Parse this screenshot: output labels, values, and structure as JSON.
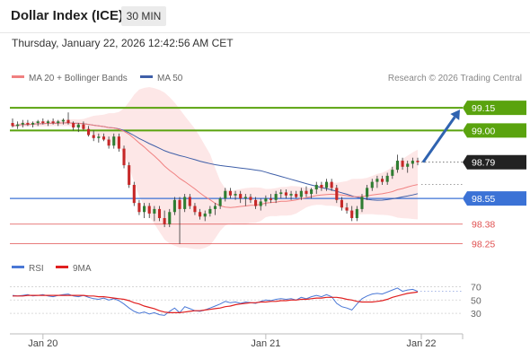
{
  "header": {
    "title": "Dollar Index (ICE)",
    "timeframe": "30 MIN"
  },
  "datetime": "Thursday, January 22, 2026 12:42:56 AM CET",
  "legend": {
    "ma20_label": "MA 20 + Bollinger Bands",
    "ma50_label": "MA 50",
    "credit": "Research © 2026 Trading Central",
    "rsi_label": "RSI",
    "ma9_label": "9MA"
  },
  "colors": {
    "up": "#2e7d32",
    "down": "#c62828",
    "ma20": "#f08080",
    "ma50": "#3f5fa8",
    "bollinger": "#fde3e3",
    "resistance": "#5aa30e",
    "pivot": "#3b72d6",
    "support": "#e05050",
    "price_box": "#222222",
    "arrow": "#2f63b0",
    "rsi": "#4a78d6",
    "rsi_ma": "#e02020"
  },
  "chart_data": [
    {
      "type": "candlestick",
      "symbol": "Dollar Index (ICE)",
      "interval": "30 MIN",
      "x_ticks": [
        "Jan 20",
        "Jan 21",
        "Jan 22"
      ],
      "ylim": [
        98.2,
        99.27
      ],
      "last_price": 98.79,
      "levels": [
        {
          "value": 99.15,
          "label": "99.15",
          "kind": "resistance"
        },
        {
          "value": 99.0,
          "label": "99.00",
          "kind": "resistance"
        },
        {
          "value": 98.55,
          "label": "98.55",
          "kind": "pivot"
        },
        {
          "value": 98.38,
          "label": "98.38",
          "kind": "support"
        },
        {
          "value": 98.25,
          "label": "98.25",
          "kind": "support"
        }
      ],
      "forecast": {
        "from": 98.79,
        "to": 99.15
      },
      "candles": [
        [
          99.05,
          99.08,
          99.02,
          99.03
        ],
        [
          99.03,
          99.06,
          99.01,
          99.04
        ],
        [
          99.04,
          99.07,
          99.02,
          99.05
        ],
        [
          99.05,
          99.07,
          99.03,
          99.04
        ],
        [
          99.04,
          99.06,
          99.02,
          99.05
        ],
        [
          99.05,
          99.07,
          99.03,
          99.06
        ],
        [
          99.06,
          99.08,
          99.04,
          99.05
        ],
        [
          99.05,
          99.07,
          99.03,
          99.06
        ],
        [
          99.06,
          99.08,
          99.04,
          99.05
        ],
        [
          99.05,
          99.07,
          99.03,
          99.06
        ],
        [
          99.06,
          99.08,
          99.04,
          99.07
        ],
        [
          99.07,
          99.12,
          99.04,
          99.05
        ],
        [
          99.05,
          99.06,
          99.0,
          99.02
        ],
        [
          99.02,
          99.05,
          98.99,
          99.04
        ],
        [
          99.04,
          99.06,
          99.0,
          99.01
        ],
        [
          99.01,
          99.03,
          98.96,
          98.97
        ],
        [
          98.97,
          99.0,
          98.93,
          98.95
        ],
        [
          98.95,
          98.98,
          98.92,
          98.96
        ],
        [
          98.96,
          98.98,
          98.93,
          98.94
        ],
        [
          98.94,
          98.96,
          98.88,
          98.9
        ],
        [
          98.9,
          98.98,
          98.88,
          98.96
        ],
        [
          98.96,
          98.98,
          98.86,
          98.88
        ],
        [
          98.88,
          98.9,
          98.75,
          98.77
        ],
        [
          98.77,
          98.79,
          98.62,
          98.64
        ],
        [
          98.64,
          98.66,
          98.5,
          98.52
        ],
        [
          98.52,
          98.54,
          98.44,
          98.46
        ],
        [
          98.46,
          98.52,
          98.42,
          98.5
        ],
        [
          98.5,
          98.52,
          98.42,
          98.45
        ],
        [
          98.45,
          98.5,
          98.4,
          98.48
        ],
        [
          98.48,
          98.5,
          98.4,
          98.42
        ],
        [
          98.42,
          98.47,
          98.36,
          98.38
        ],
        [
          98.38,
          98.48,
          98.36,
          98.46
        ],
        [
          98.46,
          98.56,
          98.44,
          98.54
        ],
        [
          98.54,
          98.56,
          98.25,
          98.48
        ],
        [
          98.48,
          98.58,
          98.46,
          98.56
        ],
        [
          98.56,
          98.58,
          98.48,
          98.5
        ],
        [
          98.5,
          98.52,
          98.44,
          98.46
        ],
        [
          98.46,
          98.48,
          98.41,
          98.43
        ],
        [
          98.43,
          98.47,
          98.4,
          98.45
        ],
        [
          98.45,
          98.5,
          98.43,
          98.48
        ],
        [
          98.48,
          98.52,
          98.44,
          98.5
        ],
        [
          98.5,
          98.56,
          98.48,
          98.55
        ],
        [
          98.55,
          98.62,
          98.53,
          98.6
        ],
        [
          98.6,
          98.62,
          98.55,
          98.57
        ],
        [
          98.57,
          98.6,
          98.54,
          98.58
        ],
        [
          98.58,
          98.6,
          98.52,
          98.55
        ],
        [
          98.55,
          98.58,
          98.5,
          98.56
        ],
        [
          98.56,
          98.58,
          98.52,
          98.54
        ],
        [
          98.54,
          98.56,
          98.48,
          98.5
        ],
        [
          98.5,
          98.55,
          98.47,
          98.53
        ],
        [
          98.53,
          98.57,
          98.5,
          98.55
        ],
        [
          98.55,
          98.58,
          98.52,
          98.54
        ],
        [
          98.54,
          98.6,
          98.52,
          98.58
        ],
        [
          98.58,
          98.61,
          98.55,
          98.59
        ],
        [
          98.59,
          98.61,
          98.55,
          98.57
        ],
        [
          98.57,
          98.6,
          98.54,
          98.58
        ],
        [
          98.58,
          98.6,
          98.55,
          98.56
        ],
        [
          98.56,
          98.62,
          98.54,
          98.6
        ],
        [
          98.6,
          98.63,
          98.56,
          98.58
        ],
        [
          98.58,
          98.62,
          98.55,
          98.61
        ],
        [
          98.61,
          98.66,
          98.58,
          98.64
        ],
        [
          98.64,
          98.66,
          98.6,
          98.62
        ],
        [
          98.62,
          98.68,
          98.6,
          98.66
        ],
        [
          98.66,
          98.68,
          98.6,
          98.62
        ],
        [
          98.62,
          98.64,
          98.52,
          98.54
        ],
        [
          98.54,
          98.56,
          98.47,
          98.49
        ],
        [
          98.49,
          98.52,
          98.45,
          98.47
        ],
        [
          98.47,
          98.5,
          98.4,
          98.42
        ],
        [
          98.42,
          98.5,
          98.4,
          98.48
        ],
        [
          98.48,
          98.58,
          98.46,
          98.56
        ],
        [
          98.56,
          98.64,
          98.54,
          98.62
        ],
        [
          98.62,
          98.68,
          98.6,
          98.66
        ],
        [
          98.66,
          98.7,
          98.62,
          98.68
        ],
        [
          98.68,
          98.7,
          98.64,
          98.66
        ],
        [
          98.66,
          98.72,
          98.64,
          98.7
        ],
        [
          98.7,
          98.76,
          98.68,
          98.74
        ],
        [
          98.74,
          98.84,
          98.72,
          98.8
        ],
        [
          98.8,
          98.82,
          98.74,
          98.76
        ],
        [
          98.76,
          98.8,
          98.72,
          98.78
        ],
        [
          98.78,
          98.82,
          98.75,
          98.8
        ],
        [
          98.8,
          98.82,
          98.77,
          98.79
        ]
      ]
    },
    {
      "type": "line",
      "name": "RSI",
      "y_ticks": [
        70,
        50,
        30
      ],
      "ylim": [
        10,
        80
      ],
      "rsi": [
        57,
        56,
        57,
        58,
        56,
        57,
        58,
        56,
        55,
        57,
        58,
        59,
        56,
        55,
        57,
        54,
        52,
        51,
        53,
        50,
        52,
        49,
        44,
        38,
        33,
        30,
        32,
        29,
        31,
        28,
        27,
        33,
        38,
        31,
        40,
        37,
        34,
        33,
        35,
        38,
        41,
        44,
        48,
        46,
        47,
        45,
        47,
        46,
        45,
        48,
        50,
        49,
        51,
        52,
        51,
        52,
        50,
        54,
        52,
        55,
        57,
        55,
        58,
        55,
        45,
        40,
        38,
        35,
        44,
        52,
        56,
        59,
        60,
        59,
        62,
        65,
        68,
        63,
        65,
        66,
        63
      ],
      "ma9": [
        56,
        56,
        56,
        57,
        57,
        57,
        57,
        57,
        57,
        57,
        57,
        57,
        57,
        57,
        57,
        56,
        56,
        55,
        55,
        54,
        53,
        52,
        51,
        49,
        46,
        44,
        41,
        39,
        37,
        34,
        32,
        31,
        31,
        31,
        32,
        33,
        34,
        34,
        35,
        36,
        37,
        38,
        40,
        41,
        43,
        44,
        45,
        46,
        46,
        47,
        47,
        48,
        48,
        49,
        49,
        50,
        50,
        51,
        51,
        52,
        53,
        53,
        54,
        54,
        54,
        53,
        51,
        50,
        48,
        47,
        47,
        47,
        48,
        49,
        51,
        54,
        56,
        58,
        60,
        61,
        62
      ]
    }
  ]
}
